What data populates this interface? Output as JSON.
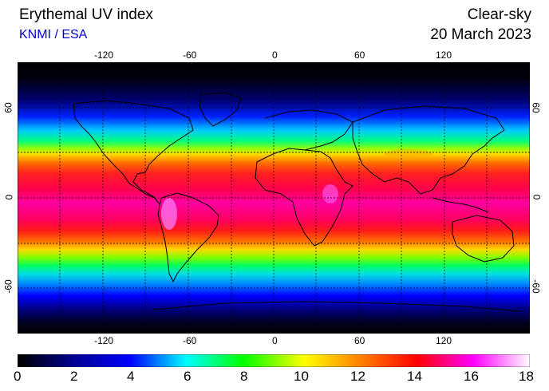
{
  "header": {
    "title": "Erythemal UV index",
    "source": "KNMI / ESA",
    "mode": "Clear-sky",
    "date": "20 March 2023"
  },
  "map": {
    "lon_ticks": [
      "-120",
      "-60",
      "0",
      "60",
      "120"
    ],
    "lat_ticks": [
      "60",
      "0",
      "-60"
    ],
    "lat_ticks_right": [
      "60",
      "0",
      "-60"
    ]
  },
  "colorbar": {
    "labels": [
      "0",
      "2",
      "4",
      "6",
      "8",
      "10",
      "12",
      "14",
      "16",
      "18"
    ],
    "min": 0,
    "max": 18,
    "colors": [
      "#000000",
      "#000080",
      "#0000ff",
      "#00ffff",
      "#00ff00",
      "#ffff00",
      "#ff8000",
      "#ff0000",
      "#ff00ff",
      "#ffffff"
    ]
  }
}
